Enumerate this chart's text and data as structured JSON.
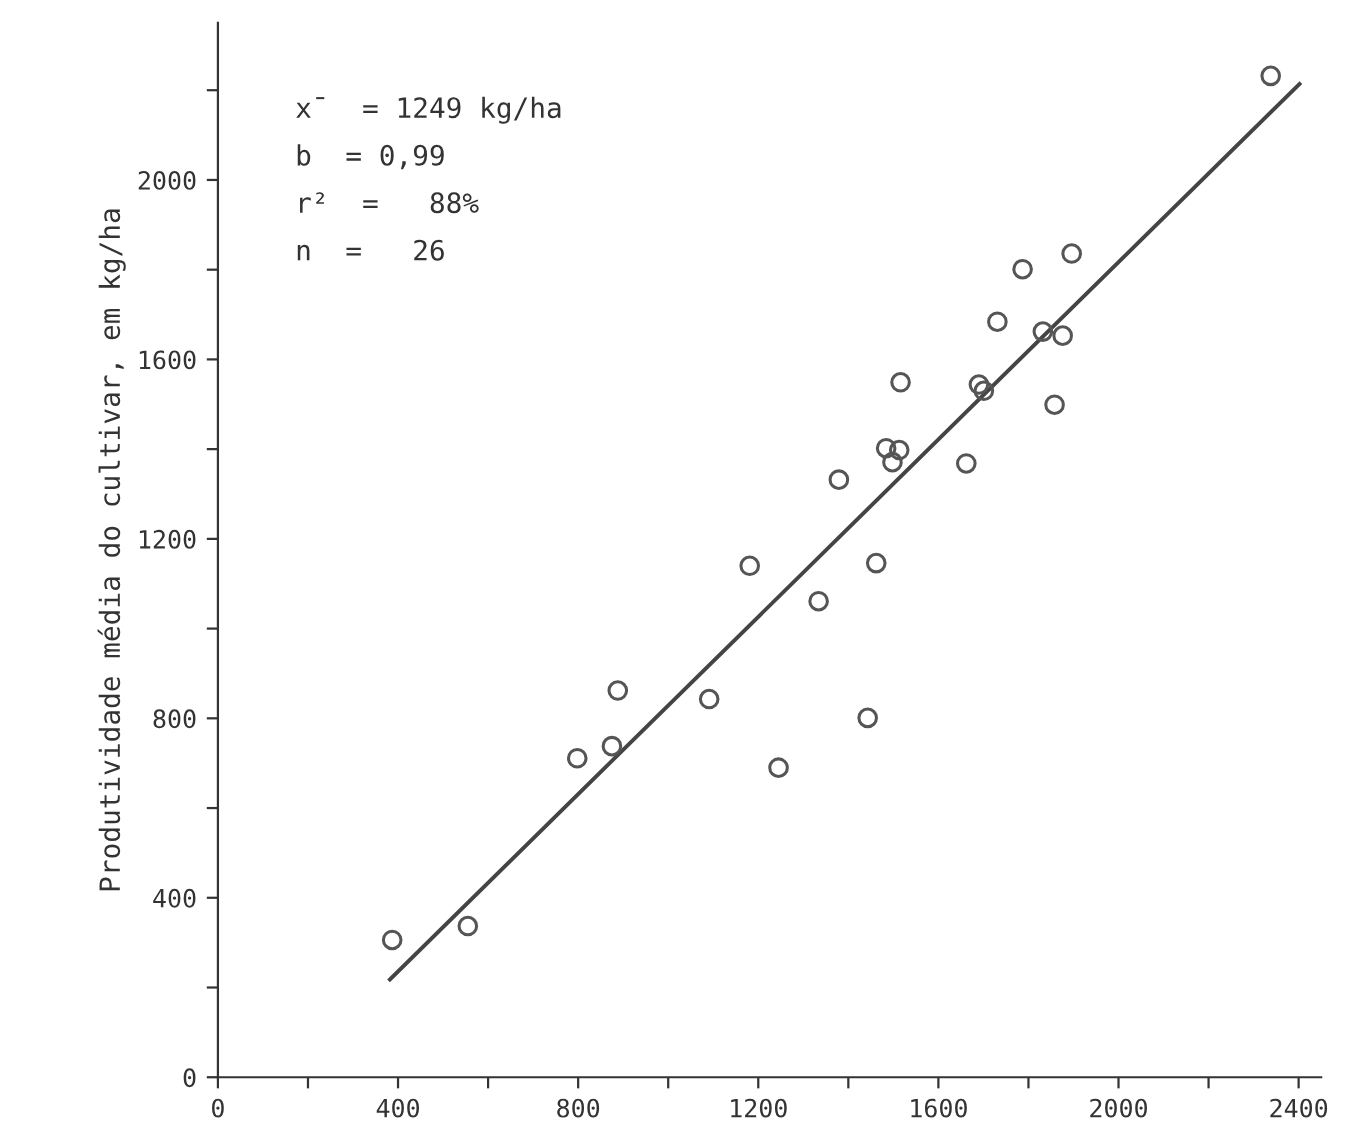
{
  "chart_data": {
    "type": "scatter",
    "ylabel": "Produtividade média do cultivar, em kg/ha",
    "xlim": [
      0,
      2450
    ],
    "ylim": [
      0,
      2350
    ],
    "xticks": [
      0,
      {
        "value": 200,
        "label": null
      },
      400,
      {
        "value": 600,
        "label": null
      },
      800,
      {
        "value": 1000,
        "label": null
      },
      1200,
      {
        "value": 1400,
        "label": null
      },
      1600,
      {
        "value": 1800,
        "label": null
      },
      2000,
      {
        "value": 2200,
        "label": null
      },
      2400
    ],
    "yticks": [
      0,
      {
        "value": 200,
        "label": null
      },
      400,
      {
        "value": 600,
        "label": null
      },
      800,
      {
        "value": 1000,
        "label": null
      },
      1200,
      {
        "value": 1400,
        "label": null
      },
      1600,
      {
        "value": 1800,
        "label": null
      },
      2000,
      {
        "value": 2200,
        "label": null
      }
    ],
    "marker": "circle",
    "grid": false,
    "legend": false,
    "annotations": [
      "x̄  = 1249 kg/ha",
      "b  = 0,99",
      "r²  =   88%",
      "n  =   26"
    ],
    "series": [
      {
        "color": "#555555",
        "x": [
          387,
          555,
          798,
          875,
          888,
          1091,
          1181,
          1245,
          1443,
          1334,
          1462,
          1662,
          1498,
          1484,
          1513,
          1379,
          1516,
          1690,
          1701,
          1858,
          1731,
          1832,
          1876,
          1787,
          1896,
          2338
        ],
        "values": [
          306,
          337,
          711,
          738,
          862,
          843,
          1140,
          690,
          801,
          1061,
          1146,
          1368,
          1371,
          1402,
          1398,
          1332,
          1549,
          1544,
          1530,
          1499,
          1684,
          1662,
          1653,
          1801,
          1836,
          2232
        ]
      },
      {
        "type": "line",
        "marker": "none",
        "color": "#444444",
        "x": [
          382,
          2402
        ],
        "values": [
          218,
          2214
        ]
      }
    ]
  }
}
